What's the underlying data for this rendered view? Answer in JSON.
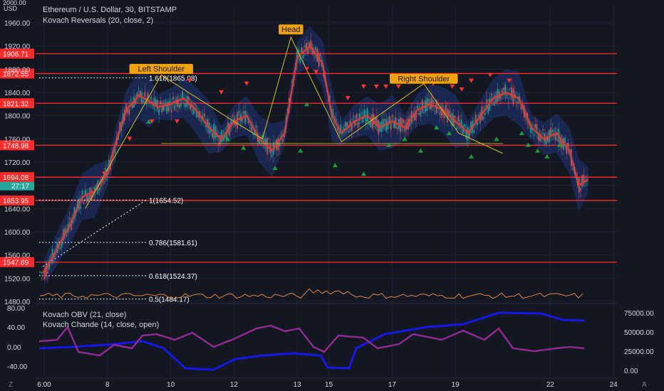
{
  "header": {
    "title": "Ethereum / U.S. Dollar, 30, BITSTAMP",
    "indicator": "Kovach Reversals (20, close, 2)",
    "currency": "USD",
    "top_price": "2000.00"
  },
  "lower_pane": {
    "indicator1": "Kovach OBV (21, close)",
    "indicator2": "Kovach Chande (14, close, open)",
    "left_ticks": [
      "80.00",
      "40.00",
      "0.00",
      "-40.00"
    ],
    "right_ticks": [
      "75000.00",
      "50000.00",
      "25000.00",
      "0.00"
    ]
  },
  "colors": {
    "background": "#131722",
    "grid": "#1e222d",
    "support_line": "#ff2b2b",
    "price_line": "#e53935",
    "band": "#1e3a8a",
    "obv": "#1616e6",
    "chande": "#8e2b8e",
    "pattern": "#d4c21a",
    "label_bg": "#f0a30a",
    "current_price_tag": "#26a69a"
  },
  "chart_data": {
    "type": "line",
    "title": "Ethereum / U.S. Dollar, 30, BITSTAMP",
    "xlabel": "",
    "ylabel": "",
    "ylim": [
      1460,
      2000
    ],
    "x_ticks": [
      "6:00",
      "8",
      "10",
      "12",
      "13",
      "15",
      "17",
      "19",
      "22",
      "24"
    ],
    "y_ticks": [
      "1960.00",
      "1920.00",
      "1880.00",
      "1840.00",
      "1800.00",
      "1760.00",
      "1720.00",
      "1680.00",
      "1640.00",
      "1600.00",
      "1560.00",
      "1520.00",
      "1480.00"
    ],
    "grid": true,
    "series": [
      {
        "type": "line",
        "x": [
          6.0,
          6.4,
          6.8,
          7.2,
          7.6,
          8.0,
          8.3,
          8.6,
          9.0,
          9.3,
          9.6,
          10.0,
          10.4,
          10.8,
          11.2,
          11.6,
          12.0,
          12.4,
          12.8,
          13.2,
          13.6,
          14.0,
          14.4,
          14.8,
          15.1,
          15.4,
          15.8,
          16.2,
          16.6,
          17.0,
          17.4,
          17.8,
          18.2,
          18.6,
          19.0,
          19.4,
          19.8,
          20.2,
          20.6,
          21.0,
          21.4,
          21.8,
          22.2,
          22.6,
          22.9,
          23.2
        ],
        "y": [
          1530,
          1570,
          1610,
          1660,
          1670,
          1700,
          1760,
          1810,
          1835,
          1825,
          1815,
          1820,
          1830,
          1810,
          1780,
          1760,
          1790,
          1800,
          1760,
          1740,
          1770,
          1900,
          1920,
          1890,
          1800,
          1770,
          1790,
          1800,
          1780,
          1790,
          1780,
          1810,
          1820,
          1810,
          1790,
          1770,
          1800,
          1830,
          1840,
          1830,
          1780,
          1760,
          1770,
          1740,
          1680,
          1690
        ]
      }
    ],
    "horizontal_levels": [
      "1906.71",
      "1872.55",
      "1821.32",
      "1748.98",
      "1694.08",
      "1653.95",
      "1547.69"
    ],
    "current_price": "27:17",
    "fibonacci": [
      {
        "label": "1.618(1865.08)",
        "value": 1865.08
      },
      {
        "label": "1(1654.52)",
        "value": 1654.52
      },
      {
        "label": "0.786(1581.61)",
        "value": 1581.61
      },
      {
        "label": "0.618(1524.37)",
        "value": 1524.37
      },
      {
        "label": "0.5(1484.17)",
        "value": 1484.17
      }
    ],
    "annotations": [
      {
        "text": "Left Shoulder",
        "x": 9.7,
        "y": 1872
      },
      {
        "text": "Head",
        "x": 13.8,
        "y": 1940
      },
      {
        "text": "Right Shoulder",
        "x": 18.0,
        "y": 1855
      }
    ],
    "pattern_line": {
      "x": [
        7.3,
        9.7,
        12.0,
        12.9,
        13.8,
        15.4,
        16.3,
        18.0,
        19.1,
        20.5
      ],
      "y": [
        1640,
        1870,
        1790,
        1760,
        1935,
        1755,
        1790,
        1855,
        1770,
        1735
      ]
    }
  }
}
